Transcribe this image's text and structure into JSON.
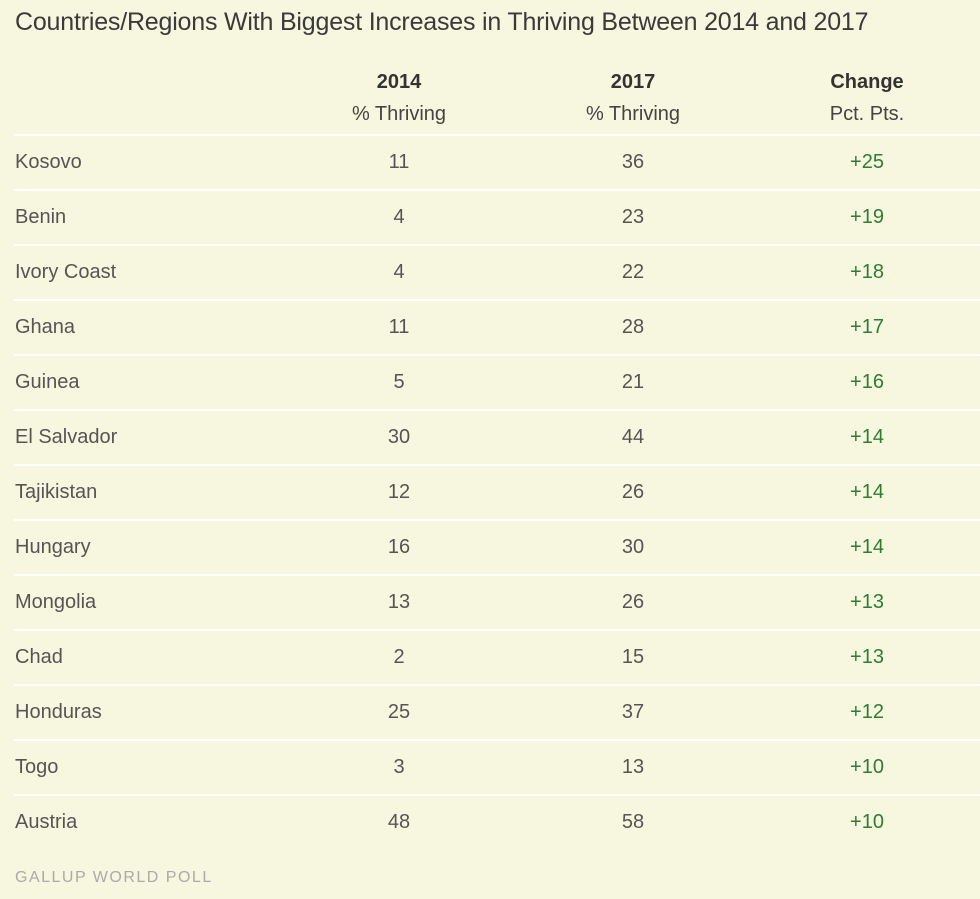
{
  "title": "Countries/Regions With Biggest Increases in Thriving Between 2014 and 2017",
  "columns": [
    {
      "key": "2014",
      "label": "2014",
      "sublabel": "% Thriving"
    },
    {
      "key": "2017",
      "label": "2017",
      "sublabel": "% Thriving"
    },
    {
      "key": "change",
      "label": "Change",
      "sublabel": "Pct. Pts."
    }
  ],
  "rows": [
    {
      "country": "Kosovo",
      "v2014": "11",
      "v2017": "36",
      "change": "+25"
    },
    {
      "country": "Benin",
      "v2014": "4",
      "v2017": "23",
      "change": "+19"
    },
    {
      "country": "Ivory Coast",
      "v2014": "4",
      "v2017": "22",
      "change": "+18"
    },
    {
      "country": "Ghana",
      "v2014": "11",
      "v2017": "28",
      "change": "+17"
    },
    {
      "country": "Guinea",
      "v2014": "5",
      "v2017": "21",
      "change": "+16"
    },
    {
      "country": "El Salvador",
      "v2014": "30",
      "v2017": "44",
      "change": "+14"
    },
    {
      "country": "Tajikistan",
      "v2014": "12",
      "v2017": "26",
      "change": "+14"
    },
    {
      "country": "Hungary",
      "v2014": "16",
      "v2017": "30",
      "change": "+14"
    },
    {
      "country": "Mongolia",
      "v2014": "13",
      "v2017": "26",
      "change": "+13"
    },
    {
      "country": "Chad",
      "v2014": "2",
      "v2017": "15",
      "change": "+13"
    },
    {
      "country": "Honduras",
      "v2014": "25",
      "v2017": "37",
      "change": "+12"
    },
    {
      "country": "Togo",
      "v2014": "3",
      "v2017": "13",
      "change": "+10"
    },
    {
      "country": "Austria",
      "v2014": "48",
      "v2017": "58",
      "change": "+10"
    }
  ],
  "source": "GALLUP WORLD POLL",
  "colors": {
    "background": "#f7f6de",
    "change_positive": "#2e7d32",
    "rule": "#ffffff"
  },
  "chart_data": {
    "type": "table",
    "title": "Countries/Regions With Biggest Increases in Thriving Between 2014 and 2017",
    "columns": [
      "2014 % Thriving",
      "2017 % Thriving",
      "Change Pct. Pts."
    ],
    "categories": [
      "Kosovo",
      "Benin",
      "Ivory Coast",
      "Ghana",
      "Guinea",
      "El Salvador",
      "Tajikistan",
      "Hungary",
      "Mongolia",
      "Chad",
      "Honduras",
      "Togo",
      "Austria"
    ],
    "series": [
      {
        "name": "2014 % Thriving",
        "values": [
          11,
          4,
          4,
          11,
          5,
          30,
          12,
          16,
          13,
          2,
          25,
          3,
          48
        ]
      },
      {
        "name": "2017 % Thriving",
        "values": [
          36,
          23,
          22,
          28,
          21,
          44,
          26,
          30,
          26,
          15,
          37,
          13,
          58
        ]
      },
      {
        "name": "Change Pct. Pts.",
        "values": [
          25,
          19,
          18,
          17,
          16,
          14,
          14,
          14,
          13,
          13,
          12,
          10,
          10
        ]
      }
    ]
  }
}
